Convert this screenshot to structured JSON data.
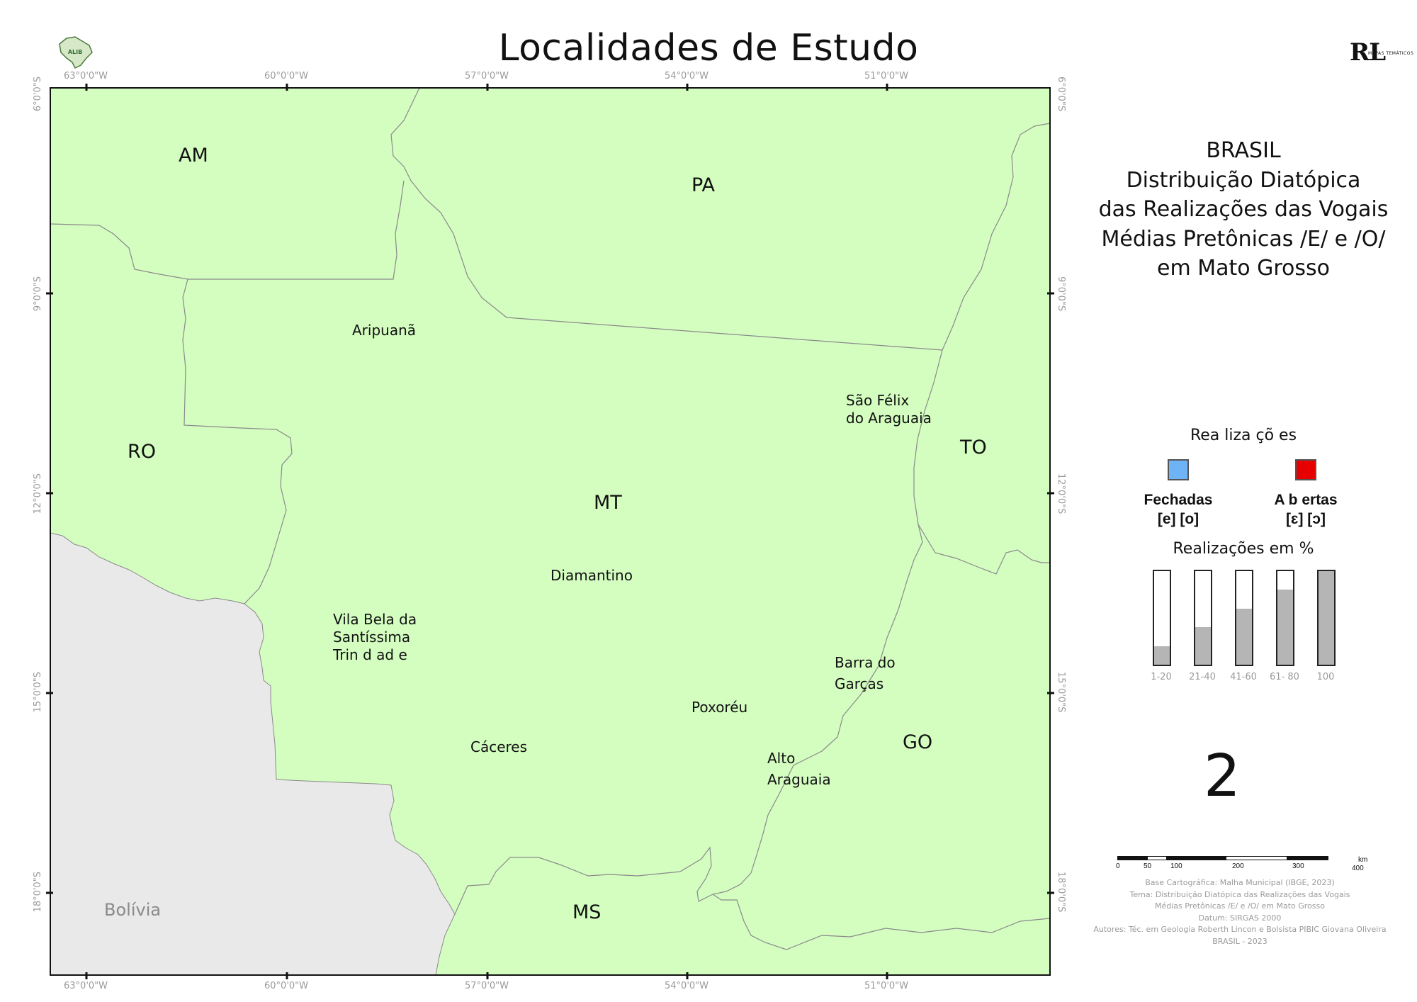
{
  "page_title": "Localidades de Estudo",
  "logo_left": "ALIB",
  "logo_right": "RL",
  "logo_right_small": "MAPAS TEMÁTICOS",
  "map": {
    "coords_top": [
      "63°0'0\"W",
      "60°0'0\"W",
      "57°0'0\"W",
      "54°0'0\"W",
      "51°0'0\"W"
    ],
    "coords_bottom": [
      "63°0'0\"W",
      "60°0'0\"W",
      "57°0'0\"W",
      "54°0'0\"W",
      "51°0'0\"W"
    ],
    "coords_left": [
      "6°0'0\"S",
      "9°0'0\"S",
      "12°0'0\"S",
      "15°0'0\"S",
      "18°0'0\"S"
    ],
    "coords_right": [
      "6°0'0\"S",
      "9°0'0\"S",
      "12°0'0\"S",
      "15°0'0\"S",
      "18°0'0\"S"
    ],
    "states": {
      "am": "AM",
      "pa": "PA",
      "ro": "RO",
      "to": "TO",
      "mt": "MT",
      "go": "GO",
      "ms": "MS"
    },
    "country": "Bolívia",
    "cities": {
      "aripuana": "Aripuanã",
      "sao_felix_1": "São Félix",
      "sao_felix_2": "do Araguaia",
      "diamantino": "Diamantino",
      "vila_bela_1": "Vila Bela da",
      "vila_bela_2": "Santíssima",
      "vila_bela_3": "Trin d ad e",
      "barra_1": "Barra do",
      "barra_2": "Garças",
      "poxoreu": "Poxoréu",
      "caceres": "Cáceres",
      "alto_1": "Alto",
      "alto_2": "Araguaia"
    },
    "colors": {
      "land": "#d4fdc0",
      "bolivia": "#e9e9e9",
      "border": "#8a8a8a"
    }
  },
  "side_panel": {
    "title_lines": [
      "BRASIL",
      "Distribuição Diatópica",
      "das Realizações das Vogais",
      "Médias Pretônicas /E/ e /O/",
      "em Mato Grosso"
    ],
    "legend_title": "Rea liza çõ es",
    "categories": [
      {
        "name": "Fechadas",
        "symbols": "[e] [o]",
        "color": "#6fb3f7"
      },
      {
        "name": "A b ertas",
        "symbols": "[ɛ] [ɔ]",
        "color": "#e60000"
      }
    ],
    "pct_title": "Realizações em %",
    "bars": [
      {
        "label": "1-20",
        "fill": 0.2
      },
      {
        "label": "21-40",
        "fill": 0.4
      },
      {
        "label": "41-60",
        "fill": 0.6
      },
      {
        "label": "61- 80",
        "fill": 0.8
      },
      {
        "label": "100",
        "fill": 1.0
      }
    ],
    "map_number": "2",
    "scale": {
      "unit": "km",
      "ticks_top": [
        "0",
        "50",
        "100",
        "200",
        "300"
      ],
      "tick_last": "400"
    },
    "credits": [
      "Base Cartográfica: Malha Municipal (IBGE, 2023)",
      "Tema: Distribuição Diatópica das Realizações das Vogais",
      "Médias Pretônicas /E/ e /O/ em Mato Grosso",
      "Datum: SIRGAS 2000",
      "Autores: Téc. em Geologia Roberth Lincon e Bolsista PIBIC Giovana Oliveira",
      "BRASIL - 2023"
    ]
  }
}
